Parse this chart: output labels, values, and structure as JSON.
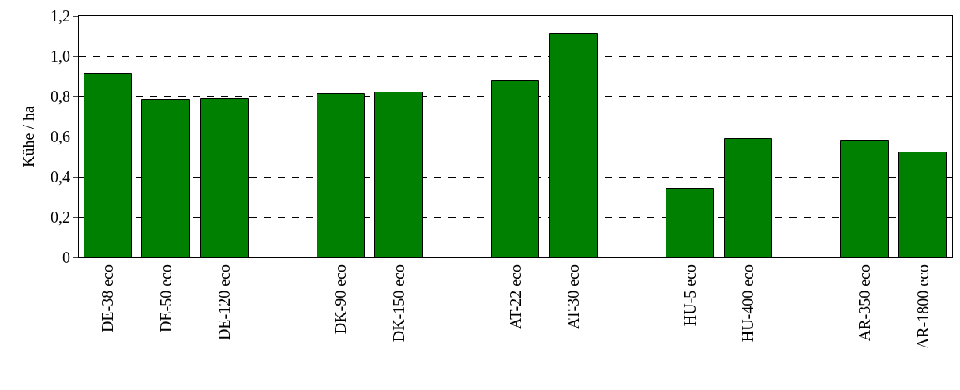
{
  "chart_data": {
    "type": "bar",
    "ylabel": "Kühe / ha",
    "categories": [
      "DE-38 eco",
      "DE-50 eco",
      "DE-120 eco",
      null,
      "DK-90 eco",
      "DK-150 eco",
      null,
      "AT-22 eco",
      "AT-30 eco",
      null,
      "HU-5 eco",
      "HU-400 eco",
      null,
      "AR-350 eco",
      "AR-1800 eco"
    ],
    "values": [
      0.91,
      0.78,
      0.79,
      null,
      0.81,
      0.82,
      null,
      0.88,
      1.11,
      null,
      0.34,
      0.59,
      null,
      0.58,
      0.52
    ],
    "color": "#008000",
    "ylim": [
      0,
      1.2
    ],
    "yticks": [
      0,
      {
        "value": 0.2,
        "label": "0,2"
      },
      {
        "value": 0.4,
        "label": "0,4"
      },
      {
        "value": 0.6,
        "label": "0,6"
      },
      {
        "value": 0.8,
        "label": "0,8"
      },
      {
        "value": 1.0,
        "label": "1,0"
      },
      {
        "value": 1.2,
        "label": "1,2"
      }
    ],
    "grid": "y"
  }
}
